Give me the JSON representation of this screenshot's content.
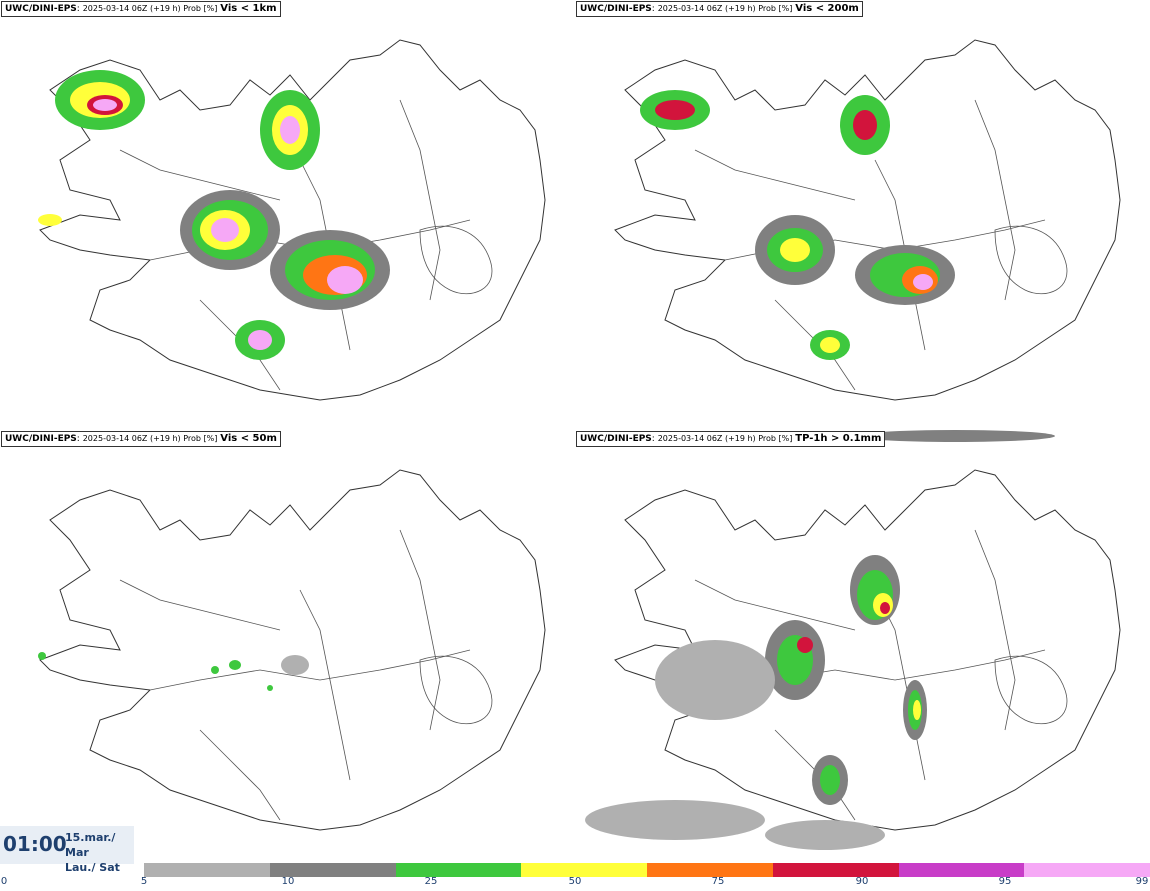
{
  "panels": [
    {
      "model": "UWC/DINI-EPS",
      "meta": "2025-03-14 06Z (+19 h) Prob [%]",
      "param": "Vis < 1km"
    },
    {
      "model": "UWC/DINI-EPS",
      "meta": "2025-03-14 06Z (+19 h) Prob [%]",
      "param": "Vis < 200m"
    },
    {
      "model": "UWC/DINI-EPS",
      "meta": "2025-03-14 06Z (+19 h) Prob [%]",
      "param": "Vis < 50m"
    },
    {
      "model": "UWC/DINI-EPS",
      "meta": "2025-03-14 06Z (+19 h) Prob [%]",
      "param": "TP-1h > 0.1mm"
    }
  ],
  "time": {
    "clock": "01:00",
    "date_line1": "15.mar./ Mar",
    "date_line2": "Lau./ Sat"
  },
  "colorbar": {
    "colors": [
      "#b0b0b0",
      "#808080",
      "#3ec83e",
      "#ffff3a",
      "#ff7514",
      "#d2143c",
      "#c83cc8",
      "#f6a8f6"
    ],
    "ticks": [
      "0",
      "5",
      "10",
      "25",
      "50",
      "75",
      "90",
      "95",
      "99"
    ]
  }
}
